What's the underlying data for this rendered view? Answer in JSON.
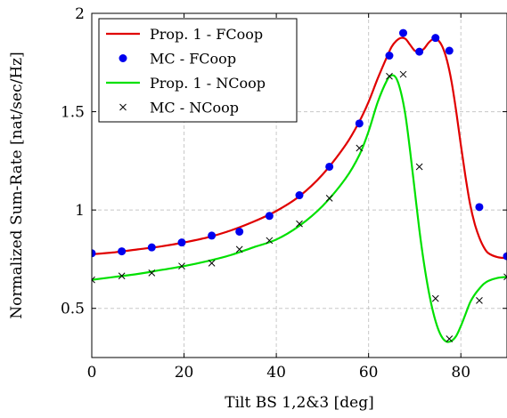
{
  "chart_data": {
    "type": "line",
    "title": "",
    "xlabel": "Tilt BS 1,2&3 [deg]",
    "ylabel": "Normalized Sum-Rate [nat/sec/Hz]",
    "xlim": [
      0,
      90
    ],
    "ylim": [
      0.25,
      2
    ],
    "xticks": [
      0,
      20,
      40,
      60,
      80
    ],
    "yticks": [
      0.5,
      1,
      1.5,
      2
    ],
    "xtick_labels": [
      "0",
      "20",
      "40",
      "60",
      "80"
    ],
    "ytick_labels": [
      "0.5",
      "1",
      "1.5",
      "2"
    ],
    "grid": true,
    "legend_position": "top-left",
    "series": [
      {
        "name": "Prop. 1 - FCoop",
        "style": "line",
        "color": "#e00000",
        "x": [
          0,
          5,
          10,
          15,
          20,
          25,
          30,
          35,
          40,
          45,
          50,
          55,
          58,
          60,
          62,
          64,
          65,
          66,
          67,
          68,
          69,
          70,
          71,
          72,
          73,
          74,
          75,
          76,
          77,
          78,
          79,
          80,
          81,
          82,
          83,
          84,
          85,
          86,
          88,
          90
        ],
        "y": [
          0.775,
          0.785,
          0.8,
          0.815,
          0.835,
          0.86,
          0.895,
          0.94,
          0.995,
          1.07,
          1.18,
          1.33,
          1.45,
          1.55,
          1.67,
          1.78,
          1.83,
          1.86,
          1.875,
          1.87,
          1.84,
          1.81,
          1.805,
          1.82,
          1.85,
          1.87,
          1.865,
          1.83,
          1.76,
          1.65,
          1.5,
          1.33,
          1.17,
          1.03,
          0.93,
          0.86,
          0.81,
          0.78,
          0.76,
          0.755
        ]
      },
      {
        "name": "MC - FCoop",
        "style": "scatter",
        "marker": "circle",
        "color": "#0000ee",
        "x": [
          0,
          6.5,
          13,
          19.5,
          26,
          32,
          38.5,
          45,
          51.5,
          58,
          64.5,
          67.5,
          71,
          74.5,
          77.5,
          84,
          90
        ],
        "y": [
          0.78,
          0.79,
          0.81,
          0.835,
          0.87,
          0.89,
          0.97,
          1.075,
          1.22,
          1.44,
          1.785,
          1.9,
          1.805,
          1.875,
          1.81,
          1.015,
          0.765
        ]
      },
      {
        "name": "Prop. 1 - NCoop",
        "style": "line",
        "color": "#00e000",
        "x": [
          0,
          5,
          10,
          15,
          20,
          25,
          30,
          35,
          40,
          45,
          50,
          55,
          58,
          60,
          62,
          64,
          65,
          66,
          67,
          68,
          69,
          70,
          71,
          72,
          73,
          74,
          75,
          76,
          77,
          78,
          79,
          80,
          81,
          82,
          83,
          84,
          85,
          86,
          88,
          90
        ],
        "y": [
          0.645,
          0.66,
          0.675,
          0.695,
          0.715,
          0.74,
          0.77,
          0.81,
          0.85,
          0.92,
          1.02,
          1.16,
          1.28,
          1.4,
          1.55,
          1.66,
          1.685,
          1.67,
          1.6,
          1.48,
          1.3,
          1.1,
          0.9,
          0.73,
          0.59,
          0.48,
          0.4,
          0.35,
          0.33,
          0.335,
          0.36,
          0.41,
          0.47,
          0.53,
          0.57,
          0.6,
          0.625,
          0.64,
          0.655,
          0.66
        ]
      },
      {
        "name": "MC - NCoop",
        "style": "scatter",
        "marker": "cross",
        "color": "#000000",
        "x": [
          0,
          6.5,
          13,
          19.5,
          26,
          32,
          38.5,
          45,
          51.5,
          58,
          64.5,
          67.5,
          71,
          74.5,
          77.5,
          84,
          90
        ],
        "y": [
          0.645,
          0.665,
          0.68,
          0.715,
          0.73,
          0.8,
          0.845,
          0.93,
          1.06,
          1.315,
          1.68,
          1.69,
          1.22,
          0.55,
          0.345,
          0.54,
          0.66
        ]
      }
    ]
  }
}
